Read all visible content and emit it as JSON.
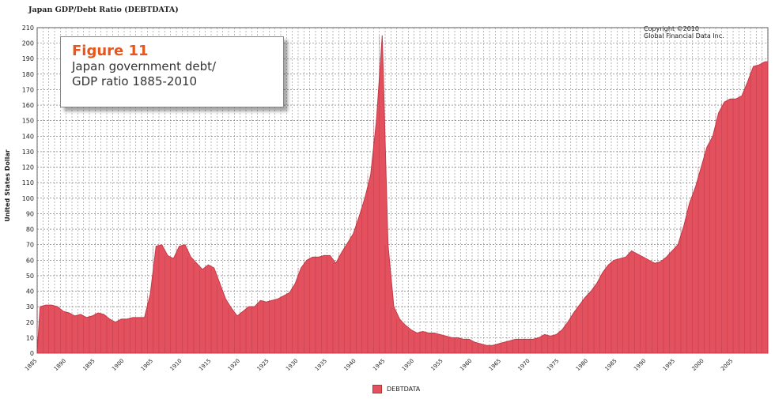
{
  "chart_data": {
    "type": "area",
    "title": "Japan GDP/Debt Ratio (DEBTDATA)",
    "ylabel": "United States Dollar",
    "xlabel": "",
    "ylim": [
      0,
      210
    ],
    "xlim": [
      1885,
      2010
    ],
    "grid": true,
    "yticks": [
      0,
      10,
      20,
      30,
      40,
      50,
      60,
      70,
      80,
      90,
      100,
      110,
      120,
      130,
      140,
      150,
      160,
      170,
      180,
      190,
      200,
      210
    ],
    "xticks": [
      "1885",
      "1890",
      "1895",
      "1900",
      "1905",
      "1910",
      "1915",
      "1920",
      "1925",
      "1930",
      "1935",
      "1940",
      "1945",
      "1950",
      "1955",
      "1960",
      "1965",
      "1970",
      "1975",
      "1980",
      "1985",
      "1990",
      "1995",
      "2000",
      "2005"
    ],
    "legend_position": "bottom-center",
    "series": [
      {
        "name": "DEBTDATA",
        "color": "#e3505e",
        "x": [
          1885,
          1886,
          1887,
          1888,
          1889,
          1890,
          1891,
          1892,
          1893,
          1894,
          1895,
          1896,
          1897,
          1898,
          1899,
          1900,
          1901,
          1902,
          1903,
          1904,
          1905,
          1906,
          1907,
          1908,
          1909,
          1910,
          1911,
          1912,
          1913,
          1914,
          1915,
          1916,
          1917,
          1918,
          1919,
          1920,
          1921,
          1922,
          1923,
          1924,
          1925,
          1926,
          1927,
          1928,
          1929,
          1930,
          1931,
          1932,
          1933,
          1934,
          1935,
          1936,
          1937,
          1938,
          1939,
          1940,
          1941,
          1942,
          1943,
          1944,
          1945,
          1946,
          1947,
          1948,
          1949,
          1950,
          1951,
          1952,
          1953,
          1954,
          1955,
          1956,
          1957,
          1958,
          1959,
          1960,
          1961,
          1962,
          1963,
          1964,
          1965,
          1966,
          1967,
          1968,
          1969,
          1970,
          1971,
          1972,
          1973,
          1974,
          1975,
          1976,
          1977,
          1978,
          1979,
          1980,
          1981,
          1982,
          1983,
          1984,
          1985,
          1986,
          1987,
          1988,
          1989,
          1990,
          1991,
          1992,
          1993,
          1994,
          1995,
          1996,
          1997,
          1998,
          1999,
          2000,
          2001,
          2002,
          2003,
          2004,
          2005,
          2006,
          2007,
          2008,
          2009,
          2010
        ],
        "values": [
          30,
          31,
          31,
          30,
          27,
          26,
          24,
          25,
          23,
          24,
          26,
          25,
          22,
          20,
          22,
          22,
          23,
          23,
          23,
          38,
          69,
          70,
          63,
          61,
          69,
          70,
          62,
          58,
          54,
          57,
          55,
          45,
          35,
          29,
          24,
          27,
          30,
          30,
          34,
          33,
          34,
          35,
          37,
          39,
          45,
          55,
          60,
          62,
          62,
          63,
          63,
          58,
          65,
          71,
          77,
          88,
          100,
          115,
          150,
          205,
          70,
          30,
          22,
          18,
          15,
          13,
          14,
          13,
          13,
          12,
          11,
          10,
          10,
          9,
          9,
          7,
          6,
          5,
          5,
          6,
          7,
          8,
          9,
          9,
          9,
          9,
          10,
          12,
          11,
          12,
          15,
          20,
          26,
          31,
          36,
          40,
          45,
          52,
          57,
          60,
          61,
          62,
          66,
          64,
          62,
          60,
          58,
          59,
          62,
          66,
          70,
          82,
          97,
          107,
          120,
          133,
          140,
          155,
          162,
          164,
          164,
          166,
          175,
          185,
          186,
          188
        ]
      }
    ]
  },
  "figure_box": {
    "label": "Figure 11",
    "line1": "Japan government debt/",
    "line2": "GDP ratio 1885-2010"
  },
  "copyright": {
    "line1": "Copyright ©2010",
    "line2": "Global Financial Data Inc."
  }
}
